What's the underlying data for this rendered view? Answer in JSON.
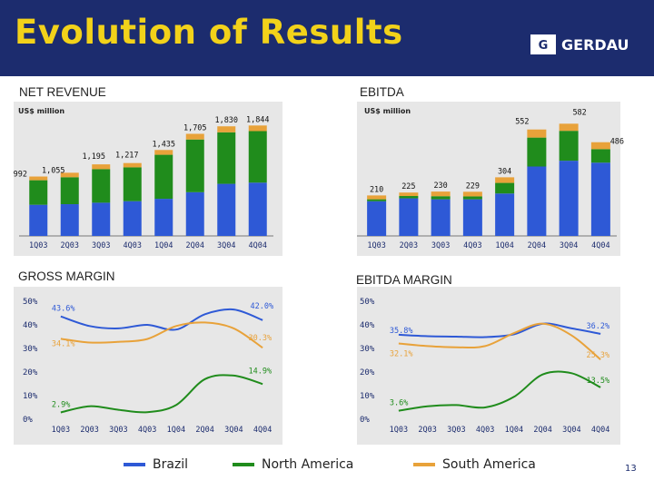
{
  "slide": {
    "title": "Evolution of Results",
    "page_number": "13",
    "logo_text": "GERDAU",
    "logo_mark": "G"
  },
  "colors": {
    "header_bg": "#1c2c6e",
    "title": "#f2d21a",
    "brazil": "#2e59d6",
    "north_america": "#208c1c",
    "south_america": "#e8a23a",
    "panel_bg": "#e7e7e7"
  },
  "legend": [
    {
      "name": "Brazil",
      "color": "#2e59d6"
    },
    {
      "name": "North America",
      "color": "#208c1c"
    },
    {
      "name": "South America",
      "color": "#e8a23a"
    }
  ],
  "sections": {
    "net_revenue": "NET REVENUE",
    "ebitda": "EBITDA",
    "gross_margin": "GROSS MARGIN",
    "ebitda_margin": "EBITDA MARGIN"
  },
  "chart_data": [
    {
      "id": "net_revenue",
      "type": "bar",
      "stacked": true,
      "unit_label": "US$ million",
      "categories": [
        "1Q03",
        "2Q03",
        "3Q03",
        "4Q03",
        "1Q04",
        "2Q04",
        "3Q04",
        "4Q04"
      ],
      "series": [
        {
          "name": "Brazil",
          "values": [
            520,
            530,
            555,
            580,
            620,
            730,
            870,
            890
          ]
        },
        {
          "name": "North America",
          "values": [
            410,
            450,
            560,
            565,
            735,
            880,
            860,
            860
          ]
        },
        {
          "name": "South America",
          "values": [
            62,
            75,
            80,
            72,
            80,
            95,
            100,
            94
          ]
        }
      ],
      "totals": [
        992,
        1055,
        1195,
        1217,
        1435,
        1705,
        1830,
        1844
      ],
      "total_labels": [
        "992",
        "1,055",
        "1,195",
        "1,217",
        "1,435",
        "1,705",
        "1,830",
        "1,844"
      ],
      "ylim": [
        0,
        2000
      ]
    },
    {
      "id": "ebitda",
      "type": "bar",
      "stacked": true,
      "unit_label": "US$ million",
      "categories": [
        "1Q03",
        "2Q03",
        "3Q03",
        "4Q03",
        "1Q04",
        "2Q04",
        "3Q04",
        "4Q04"
      ],
      "series": [
        {
          "name": "Brazil",
          "values": [
            180,
            195,
            190,
            190,
            220,
            360,
            390,
            380
          ]
        },
        {
          "name": "North America",
          "values": [
            10,
            12,
            16,
            15,
            55,
            150,
            155,
            70
          ]
        },
        {
          "name": "South America",
          "values": [
            20,
            18,
            24,
            24,
            29,
            42,
            37,
            36
          ]
        }
      ],
      "totals": [
        210,
        225,
        230,
        229,
        304,
        552,
        582,
        486
      ],
      "total_labels": [
        "210",
        "225",
        "230",
        "229",
        "304",
        "552",
        "582",
        "486"
      ],
      "ylim": [
        0,
        640
      ]
    },
    {
      "id": "gross_margin",
      "type": "line",
      "categories": [
        "1Q03",
        "2Q03",
        "3Q03",
        "4Q03",
        "1Q04",
        "2Q04",
        "3Q04",
        "4Q04"
      ],
      "yticks": [
        "0%",
        "10%",
        "20%",
        "30%",
        "40%",
        "50%"
      ],
      "ylim": [
        0,
        50
      ],
      "series": [
        {
          "name": "Brazil",
          "values": [
            43.6,
            39.5,
            38.5,
            40.0,
            38.0,
            44.5,
            46.5,
            42.0
          ]
        },
        {
          "name": "North America",
          "values": [
            2.9,
            5.5,
            4.0,
            3.0,
            6.0,
            17.0,
            18.5,
            14.9
          ]
        },
        {
          "name": "South America",
          "values": [
            34.1,
            32.5,
            32.8,
            34.0,
            39.5,
            41.0,
            38.5,
            30.3
          ]
        }
      ],
      "annotations": {
        "Brazil": {
          "start": "43.6%",
          "end": "42.0%"
        },
        "North America": {
          "start": "2.9%",
          "end": "14.9%"
        },
        "South America": {
          "start": "34.1%",
          "end": "30.3%"
        }
      }
    },
    {
      "id": "ebitda_margin",
      "type": "line",
      "categories": [
        "1Q03",
        "2Q03",
        "3Q03",
        "4Q03",
        "1Q04",
        "2Q04",
        "3Q04",
        "4Q04"
      ],
      "yticks": [
        "0%",
        "10%",
        "20%",
        "30%",
        "40%",
        "50%"
      ],
      "ylim": [
        0,
        50
      ],
      "series": [
        {
          "name": "Brazil",
          "values": [
            35.8,
            35.2,
            35.0,
            34.8,
            36.0,
            40.5,
            38.5,
            36.2
          ]
        },
        {
          "name": "North America",
          "values": [
            3.6,
            5.5,
            6.0,
            5.0,
            9.5,
            19.0,
            19.5,
            13.5
          ]
        },
        {
          "name": "South America",
          "values": [
            32.1,
            31.0,
            30.5,
            31.0,
            36.5,
            40.5,
            35.5,
            25.3
          ]
        }
      ],
      "annotations": {
        "Brazil": {
          "start": "35.8%",
          "end": "36.2%"
        },
        "North America": {
          "start": "3.6%",
          "end": "13.5%"
        },
        "South America": {
          "start": "32.1%",
          "end": "25.3%"
        }
      }
    }
  ]
}
